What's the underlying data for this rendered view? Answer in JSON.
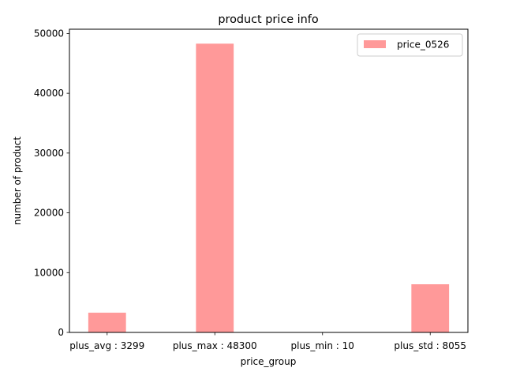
{
  "chart_data": {
    "type": "bar",
    "title": "product price info",
    "xlabel": "price_group",
    "ylabel": "number of product",
    "categories": [
      "plus_avg : 3299",
      "plus_max : 48300",
      "plus_min : 10",
      "plus_std : 8055"
    ],
    "series": [
      {
        "name": "price_0526",
        "values": [
          3299,
          48300,
          10,
          8055
        ],
        "color": "#ff9999"
      }
    ],
    "ylim": [
      0,
      50715
    ],
    "yticks": [
      0,
      10000,
      20000,
      30000,
      40000,
      50000
    ],
    "grid": false,
    "legend": {
      "position": "top-right"
    }
  }
}
